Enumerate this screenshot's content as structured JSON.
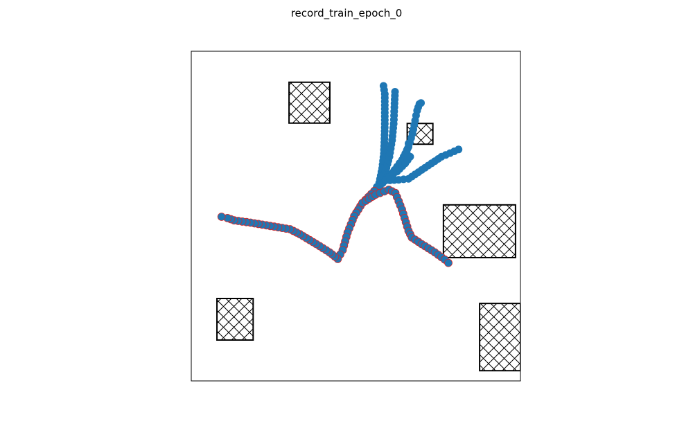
{
  "title": "record_train_epoch_0",
  "chart_data": {
    "type": "scatter",
    "title": "record_train_epoch_0",
    "xlabel": "",
    "ylabel": "",
    "xlim": [
      0,
      1
    ],
    "ylim": [
      0,
      1
    ],
    "axis_ticks": false,
    "grid": false,
    "marker_color": "#1f77b4",
    "highlight_path_color": "#d62728",
    "obstacle_style": "cross-hatched rectangle",
    "obstacles": [
      {
        "name": "obstacle-1",
        "x": 0.297,
        "y": 0.782,
        "w": 0.124,
        "h": 0.124
      },
      {
        "name": "obstacle-2",
        "x": 0.656,
        "y": 0.718,
        "w": 0.078,
        "h": 0.063
      },
      {
        "name": "obstacle-3",
        "x": 0.766,
        "y": 0.374,
        "w": 0.219,
        "h": 0.16
      },
      {
        "name": "obstacle-4",
        "x": 0.078,
        "y": 0.124,
        "w": 0.11,
        "h": 0.126
      },
      {
        "name": "obstacle-5",
        "x": 0.876,
        "y": 0.031,
        "w": 0.124,
        "h": 0.204
      }
    ],
    "series": [
      {
        "highlighted": false,
        "points": [
          [
            0.556,
            0.576
          ],
          [
            0.571,
            0.601
          ],
          [
            0.58,
            0.645
          ],
          [
            0.585,
            0.69
          ],
          [
            0.587,
            0.735
          ],
          [
            0.588,
            0.78
          ],
          [
            0.588,
            0.825
          ],
          [
            0.588,
            0.87
          ],
          [
            0.584,
            0.895
          ]
        ]
      },
      {
        "highlighted": false,
        "points": [
          [
            0.556,
            0.576
          ],
          [
            0.574,
            0.6
          ],
          [
            0.59,
            0.635
          ],
          [
            0.602,
            0.68
          ],
          [
            0.61,
            0.73
          ],
          [
            0.615,
            0.78
          ],
          [
            0.617,
            0.83
          ],
          [
            0.619,
            0.877
          ]
        ]
      },
      {
        "highlighted": false,
        "points": [
          [
            0.556,
            0.576
          ],
          [
            0.578,
            0.6
          ],
          [
            0.61,
            0.63
          ],
          [
            0.64,
            0.67
          ],
          [
            0.66,
            0.71
          ],
          [
            0.672,
            0.75
          ],
          [
            0.68,
            0.79
          ],
          [
            0.686,
            0.82
          ],
          [
            0.693,
            0.84
          ],
          [
            0.698,
            0.843
          ]
        ]
      },
      {
        "highlighted": false,
        "points": [
          [
            0.556,
            0.576
          ],
          [
            0.585,
            0.61
          ],
          [
            0.615,
            0.635
          ],
          [
            0.64,
            0.66
          ],
          [
            0.655,
            0.69
          ],
          [
            0.66,
            0.72
          ]
        ]
      },
      {
        "highlighted": false,
        "points": [
          [
            0.556,
            0.576
          ],
          [
            0.59,
            0.61
          ],
          [
            0.625,
            0.635
          ],
          [
            0.65,
            0.66
          ],
          [
            0.665,
            0.68
          ]
        ]
      },
      {
        "highlighted": false,
        "points": [
          [
            0.556,
            0.576
          ],
          [
            0.59,
            0.608
          ],
          [
            0.63,
            0.61
          ],
          [
            0.66,
            0.613
          ],
          [
            0.7,
            0.64
          ],
          [
            0.76,
            0.68
          ],
          [
            0.812,
            0.702
          ]
        ]
      },
      {
        "highlighted": true,
        "points": [
          [
            0.556,
            0.576
          ],
          [
            0.52,
            0.54
          ],
          [
            0.495,
            0.5
          ],
          [
            0.475,
            0.45
          ],
          [
            0.46,
            0.397
          ],
          [
            0.445,
            0.37
          ],
          [
            0.42,
            0.39
          ],
          [
            0.38,
            0.415
          ],
          [
            0.33,
            0.445
          ],
          [
            0.3,
            0.46
          ],
          [
            0.24,
            0.47
          ],
          [
            0.18,
            0.48
          ],
          [
            0.13,
            0.487
          ],
          [
            0.11,
            0.494
          ],
          [
            0.092,
            0.498
          ]
        ]
      },
      {
        "highlighted": true,
        "points": [
          [
            0.52,
            0.54
          ],
          [
            0.56,
            0.565
          ],
          [
            0.6,
            0.58
          ],
          [
            0.62,
            0.57
          ],
          [
            0.64,
            0.52
          ],
          [
            0.66,
            0.455
          ],
          [
            0.67,
            0.435
          ],
          [
            0.7,
            0.415
          ],
          [
            0.74,
            0.39
          ],
          [
            0.77,
            0.368
          ],
          [
            0.781,
            0.358
          ]
        ]
      }
    ]
  }
}
